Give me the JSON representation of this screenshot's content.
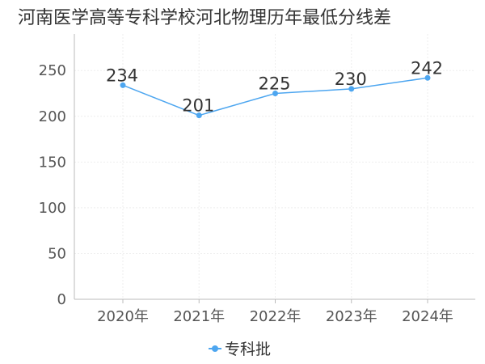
{
  "chart_data": {
    "type": "line",
    "title": "河南医学高等专科学校河北物理历年最低分线差",
    "categories": [
      "2020年",
      "2021年",
      "2022年",
      "2023年",
      "2024年"
    ],
    "series": [
      {
        "name": "专科批",
        "values": [
          234,
          201,
          225,
          230,
          242
        ],
        "color": "#4da6f0"
      }
    ],
    "ylim": [
      0,
      290
    ],
    "yticks": [
      0,
      50,
      100,
      150,
      200,
      250
    ],
    "grid": true,
    "legend_position": "bottom-center"
  }
}
